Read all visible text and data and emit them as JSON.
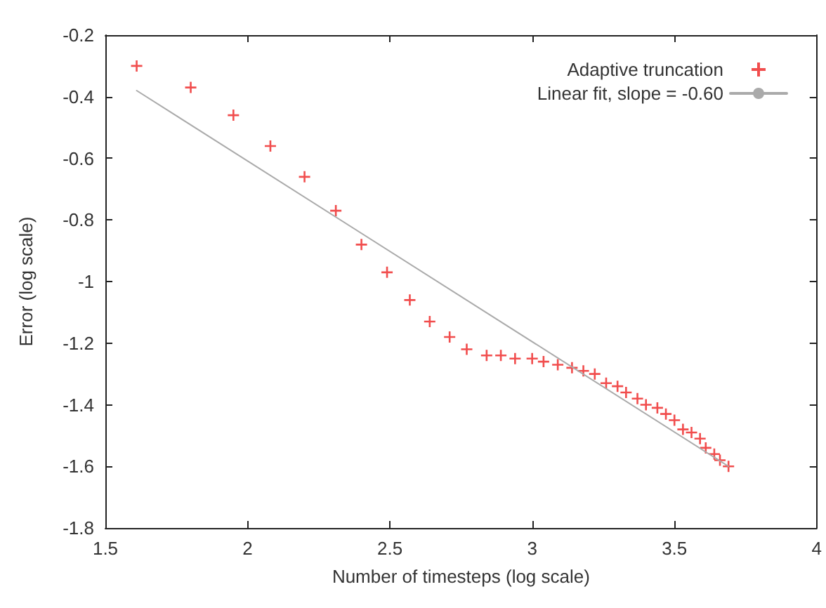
{
  "chart_data": {
    "type": "scatter",
    "xlabel": "Number of timesteps (log scale)",
    "ylabel": "Error (log scale)",
    "xlim": [
      1.5,
      4
    ],
    "xticks": [
      1.5,
      2,
      2.5,
      3,
      3.5,
      4
    ],
    "ylim": [
      -1.8,
      -0.2
    ],
    "yticks": [
      -1.8,
      -1.6,
      -1.4,
      -1.2,
      -1,
      -0.8,
      -0.6,
      -0.4,
      -0.2
    ],
    "grid": false,
    "legend": "top right",
    "series": [
      {
        "name": "Adaptive truncation",
        "marker": "cross",
        "color": "#ee2020",
        "x": [
          1.61,
          1.8,
          1.95,
          2.08,
          2.2,
          2.31,
          2.4,
          2.49,
          2.57,
          2.64,
          2.71,
          2.77,
          2.84,
          2.89,
          2.94,
          3,
          3.04,
          3.09,
          3.14,
          3.18,
          3.22,
          3.26,
          3.3,
          3.33,
          3.37,
          3.4,
          3.44,
          3.47,
          3.5,
          3.53,
          3.56,
          3.59,
          3.61,
          3.64,
          3.66,
          3.69
        ],
        "values": [
          -0.3,
          -0.37,
          -0.46,
          -0.56,
          -0.66,
          -0.77,
          -0.88,
          -0.97,
          -1.06,
          -1.13,
          -1.18,
          -1.22,
          -1.24,
          -1.24,
          -1.25,
          -1.25,
          -1.26,
          -1.27,
          -1.28,
          -1.29,
          -1.3,
          -1.33,
          -1.34,
          -1.36,
          -1.38,
          -1.4,
          -1.41,
          -1.43,
          -1.45,
          -1.48,
          -1.49,
          -1.51,
          -1.54,
          -1.56,
          -1.58,
          -1.6
        ]
      },
      {
        "name": "Linear fit, slope = -0.60",
        "type": "line",
        "marker": "none",
        "line_style": "solid",
        "color": "#aaaaaa",
        "x": [
          1.61,
          3.69
        ],
        "values": [
          -0.38,
          -1.6
        ]
      }
    ]
  }
}
